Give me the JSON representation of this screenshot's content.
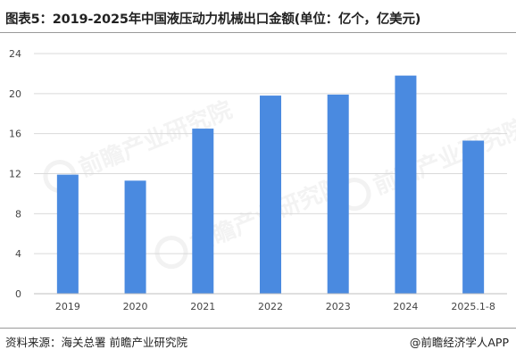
{
  "title": "图表5：2019-2025年中国液压动力机械出口金额(单位：亿个，亿美元)",
  "footer": {
    "source": "资料来源：海关总署 前瞻产业研究院",
    "credit": "@前瞻经济学人APP"
  },
  "watermark": {
    "text": "前瞻产业研究院",
    "icon": "qianzhan-logo-icon"
  },
  "colors": {
    "bar": "#4a8ae0",
    "grid": "#d9d9d9",
    "axis": "#bfbfbf"
  },
  "chart_data": {
    "type": "bar",
    "categories": [
      "2019",
      "2020",
      "2021",
      "2022",
      "2023",
      "2024",
      "2025.1-8"
    ],
    "values": [
      11.9,
      11.3,
      16.5,
      19.8,
      19.9,
      21.8,
      15.3
    ],
    "yticks": [
      0,
      4,
      8,
      12,
      16,
      20,
      24
    ],
    "ylim": [
      0,
      24
    ],
    "grid": true,
    "legend": "none",
    "title": "",
    "xlabel": "",
    "ylabel": ""
  }
}
